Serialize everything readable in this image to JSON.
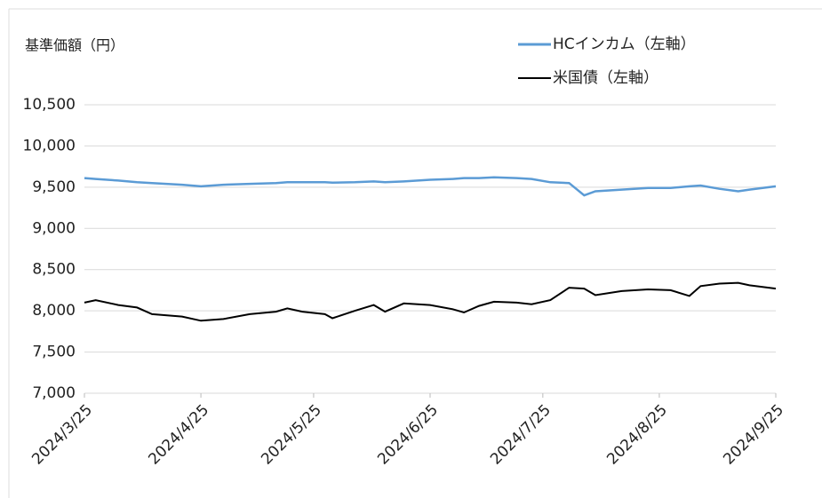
{
  "chart_data": {
    "type": "line",
    "y_label": "基準価額（円）",
    "x": [
      "2024/3/25",
      "2024/3/28",
      "2024/4/3",
      "2024/4/8",
      "2024/4/12",
      "2024/4/20",
      "2024/4/25",
      "2024/5/1",
      "2024/5/8",
      "2024/5/15",
      "2024/5/18",
      "2024/5/22",
      "2024/5/28",
      "2024/5/30",
      "2024/6/5",
      "2024/6/10",
      "2024/6/13",
      "2024/6/18",
      "2024/6/25",
      "2024/7/1",
      "2024/7/4",
      "2024/7/8",
      "2024/7/12",
      "2024/7/18",
      "2024/7/22",
      "2024/7/27",
      "2024/8/1",
      "2024/8/5",
      "2024/8/8",
      "2024/8/15",
      "2024/8/22",
      "2024/8/28",
      "2024/9/2",
      "2024/9/5",
      "2024/9/10",
      "2024/9/15",
      "2024/9/18",
      "2024/9/25"
    ],
    "series": [
      {
        "name": "HCインカム（左軸）",
        "color": "#5b9bd5",
        "values": [
          9610,
          9600,
          9580,
          9560,
          9550,
          9530,
          9510,
          9530,
          9540,
          9550,
          9560,
          9560,
          9560,
          9555,
          9560,
          9570,
          9560,
          9570,
          9590,
          9600,
          9610,
          9610,
          9620,
          9610,
          9600,
          9560,
          9550,
          9400,
          9450,
          9470,
          9490,
          9490,
          9510,
          9520,
          9480,
          9450,
          9470,
          9510
        ]
      },
      {
        "name": "米国債（左軸）",
        "color": "#000000",
        "values": [
          8100,
          8130,
          8070,
          8040,
          7960,
          7930,
          7880,
          7900,
          7960,
          7990,
          8030,
          7990,
          7960,
          7910,
          8000,
          8070,
          7990,
          8090,
          8070,
          8020,
          7980,
          8060,
          8110,
          8100,
          8080,
          8130,
          8280,
          8270,
          8190,
          8240,
          8260,
          8250,
          8180,
          8300,
          8330,
          8340,
          8310,
          8270
        ]
      }
    ],
    "xlim": [
      "2024/3/25",
      "2024/9/25"
    ],
    "xticks": [
      "2024/3/25",
      "2024/4/25",
      "2024/5/25",
      "2024/6/25",
      "2024/7/25",
      "2024/8/25",
      "2024/9/25"
    ],
    "ylim": [
      7000,
      10500
    ],
    "yticks": [
      {
        "value": 7000,
        "label": "7,000"
      },
      {
        "value": 7500,
        "label": "7,500"
      },
      {
        "value": 8000,
        "label": "8,000"
      },
      {
        "value": 8500,
        "label": "8,500"
      },
      {
        "value": 9000,
        "label": "9,000"
      },
      {
        "value": 9500,
        "label": "9,500"
      },
      {
        "value": 10000,
        "label": "10,000"
      },
      {
        "value": 10500,
        "label": "10,500"
      }
    ],
    "grid": true
  }
}
